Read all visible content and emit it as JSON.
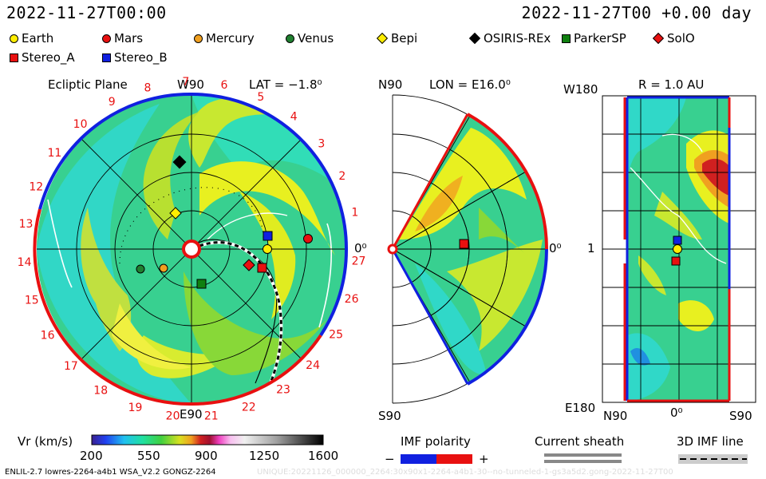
{
  "header": {
    "left_date": "2022-11-27T00:00",
    "right_date": "2022-11-27T00 +0.00 day"
  },
  "legend": [
    {
      "label": "Earth",
      "color": "#ffee00",
      "shape": "circle"
    },
    {
      "label": "Mars",
      "color": "#e81010",
      "shape": "circle"
    },
    {
      "label": "Mercury",
      "color": "#f0a020",
      "shape": "circle"
    },
    {
      "label": "Venus",
      "color": "#208030",
      "shape": "circle"
    },
    {
      "label": "Bepi",
      "color": "#ffee00",
      "shape": "diamond"
    },
    {
      "label": "OSIRIS-REx",
      "color": "#000000",
      "shape": "diamond"
    },
    {
      "label": "ParkerSP",
      "color": "#108010",
      "shape": "square"
    },
    {
      "label": "SolO",
      "color": "#e81010",
      "shape": "diamond"
    },
    {
      "label": "Stereo_A",
      "color": "#e81010",
      "shape": "square"
    },
    {
      "label": "Stereo_B",
      "color": "#1020e0",
      "shape": "square"
    }
  ],
  "ecliptic": {
    "title": "Ecliptic Plane",
    "lat": "LAT = −1.8⁰",
    "top_label": "W90",
    "bottom_label": "E90",
    "right_label": "0⁰",
    "day_numbers": [
      "1",
      "2",
      "3",
      "4",
      "5",
      "6",
      "7",
      "8",
      "9",
      "10",
      "11",
      "12",
      "13",
      "14",
      "15",
      "16",
      "17",
      "18",
      "19",
      "20",
      "21",
      "22",
      "23",
      "24",
      "25",
      "26",
      "27"
    ]
  },
  "meridional": {
    "lon": "LON = E16.0⁰",
    "top_label": "N90",
    "bottom_label": "S90",
    "right_label": "0⁰"
  },
  "radial": {
    "r": "R = 1.0 AU",
    "top_label": "W180",
    "bottom_label": "E180",
    "left_value": "1",
    "x_labels": [
      "N90",
      "0⁰",
      "S90"
    ]
  },
  "colorbar": {
    "label": "Vr (km/s)",
    "ticks": [
      "200",
      "550",
      "900",
      "1250",
      "1600"
    ]
  },
  "imf": {
    "title": "IMF polarity",
    "minus": "−",
    "plus": "+",
    "minus_color": "#1020e0",
    "plus_color": "#e81010"
  },
  "sheath": {
    "title": "Current sheath"
  },
  "imf3d": {
    "title": "3D IMF line"
  },
  "footer": {
    "left": "ENLIL-2.7 lowres-2264-a4b1 WSA_V2.2 GONGZ-2264",
    "right": "UNIQUE:20221126_000000_2264:30x90x1-2264-a4b1-30--no-tunneled-1-gs3a5d2.gong-2022-11-27T00"
  }
}
